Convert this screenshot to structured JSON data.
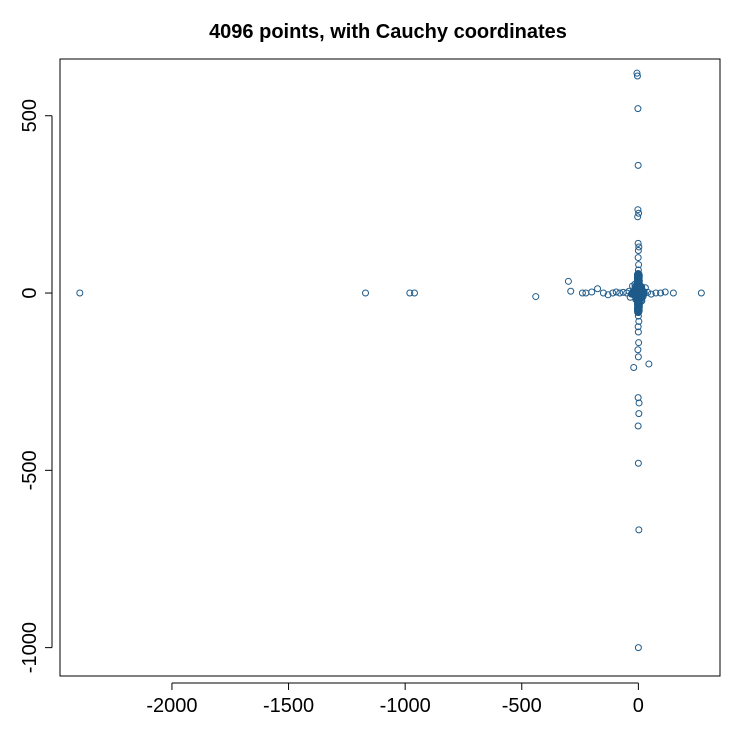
{
  "chart_data": {
    "type": "scatter",
    "title": "4096 points, with  Cauchy  coordinates",
    "xlabel": "",
    "ylabel": "",
    "xlim": [
      -2480,
      350
    ],
    "ylim": [
      -1080,
      660
    ],
    "x_ticks": [
      -2000,
      -1500,
      -1000,
      -500,
      0
    ],
    "y_ticks": [
      -1000,
      -500,
      0,
      500
    ],
    "x_tick_labels": [
      "-2000",
      "-1500",
      "-1000",
      "-500",
      "0"
    ],
    "y_tick_labels": [
      "-1000",
      "-500",
      "0",
      "500"
    ],
    "grid": false,
    "legend": "none",
    "marker": "open-circle",
    "point_color": "#1f5b8a",
    "series": [
      {
        "points": [
          [
            -2395,
            0
          ],
          [
            -1170,
            0
          ],
          [
            -980,
            0
          ],
          [
            -960,
            0
          ],
          [
            -440,
            -10
          ],
          [
            -300,
            33
          ],
          [
            -290,
            5
          ],
          [
            -240,
            0
          ],
          [
            -225,
            0
          ],
          [
            -200,
            3
          ],
          [
            -175,
            12
          ],
          [
            -150,
            0
          ],
          [
            -130,
            -5
          ],
          [
            -110,
            0
          ],
          [
            -95,
            3
          ],
          [
            -80,
            0
          ],
          [
            -65,
            2
          ],
          [
            -50,
            0
          ],
          [
            -40,
            5
          ],
          [
            -30,
            -3
          ],
          [
            -20,
            0
          ],
          [
            -10,
            4
          ],
          [
            25,
            0
          ],
          [
            40,
            2
          ],
          [
            55,
            -3
          ],
          [
            75,
            0
          ],
          [
            95,
            0
          ],
          [
            115,
            3
          ],
          [
            150,
            0
          ],
          [
            270,
            0
          ],
          [
            -6,
            620
          ],
          [
            -4,
            612
          ],
          [
            -2,
            520
          ],
          [
            -1,
            360
          ],
          [
            -2,
            235
          ],
          [
            1,
            225
          ],
          [
            -3,
            215
          ],
          [
            -1,
            140
          ],
          [
            2,
            130
          ],
          [
            0,
            120
          ],
          [
            -1,
            100
          ],
          [
            1,
            80
          ],
          [
            0,
            65
          ],
          [
            -1,
            55
          ],
          [
            1,
            45
          ],
          [
            0,
            35
          ],
          [
            2,
            25
          ],
          [
            -2,
            15
          ],
          [
            0,
            -20
          ],
          [
            1,
            -35
          ],
          [
            -1,
            -50
          ],
          [
            0,
            -65
          ],
          [
            2,
            -80
          ],
          [
            -1,
            -95
          ],
          [
            0,
            -110
          ],
          [
            1,
            -140
          ],
          [
            -2,
            -160
          ],
          [
            0,
            -180
          ],
          [
            -20,
            -210
          ],
          [
            45,
            -200
          ],
          [
            -1,
            -295
          ],
          [
            3,
            -310
          ],
          [
            2,
            -340
          ],
          [
            -1,
            -375
          ],
          [
            0,
            -480
          ],
          [
            2,
            -668
          ],
          [
            0,
            -1000
          ],
          [
            -15,
            25
          ],
          [
            -25,
            20
          ],
          [
            12,
            18
          ],
          [
            20,
            -10
          ],
          [
            -10,
            -15
          ],
          [
            8,
            10
          ],
          [
            -5,
            8
          ],
          [
            30,
            15
          ],
          [
            -35,
            -12
          ],
          [
            15,
            -22
          ]
        ],
        "core_note_counts": null
      }
    ]
  }
}
